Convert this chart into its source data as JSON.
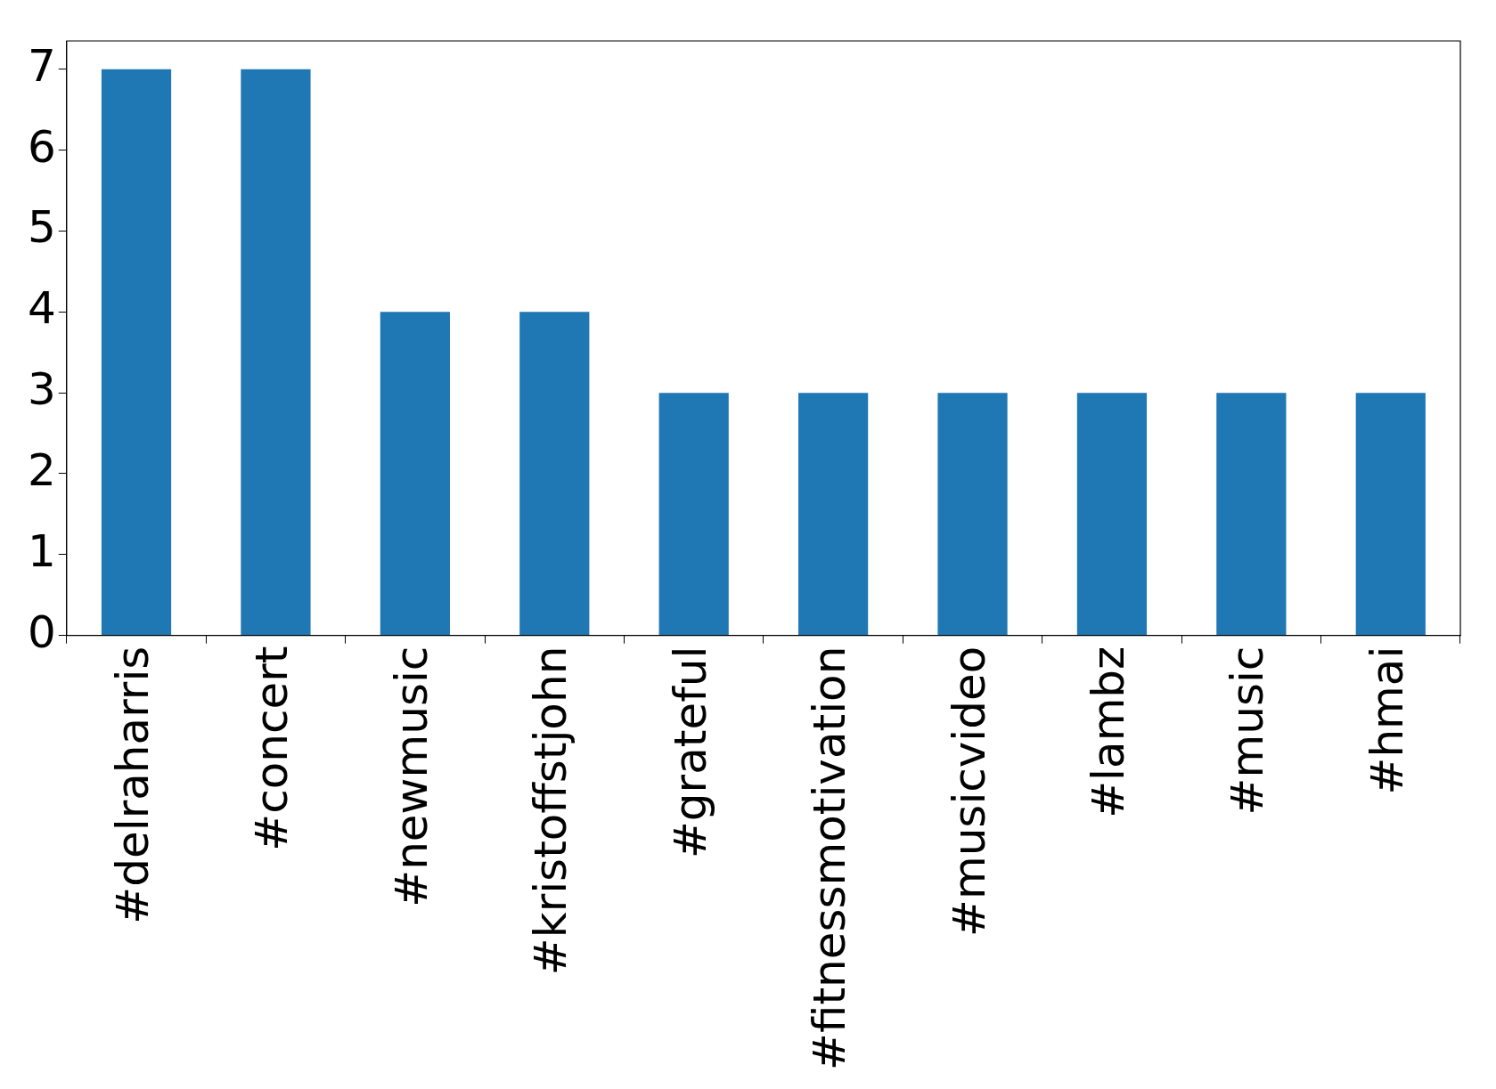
{
  "chart_data": {
    "type": "bar",
    "categories": [
      "#delraharris",
      "#concert",
      "#newmusic",
      "#kristoffstjohn",
      "#grateful",
      "#fitnessmotivation",
      "#musicvideo",
      "#lambz",
      "#music",
      "#hmai"
    ],
    "values": [
      7,
      7,
      4,
      4,
      3,
      3,
      3,
      3,
      3,
      3
    ],
    "color": "#1f77b4",
    "ylim": [
      0,
      7.35
    ],
    "yticks": [
      0,
      1,
      2,
      3,
      4,
      5,
      6,
      7
    ],
    "grid": false,
    "legend": false
  }
}
